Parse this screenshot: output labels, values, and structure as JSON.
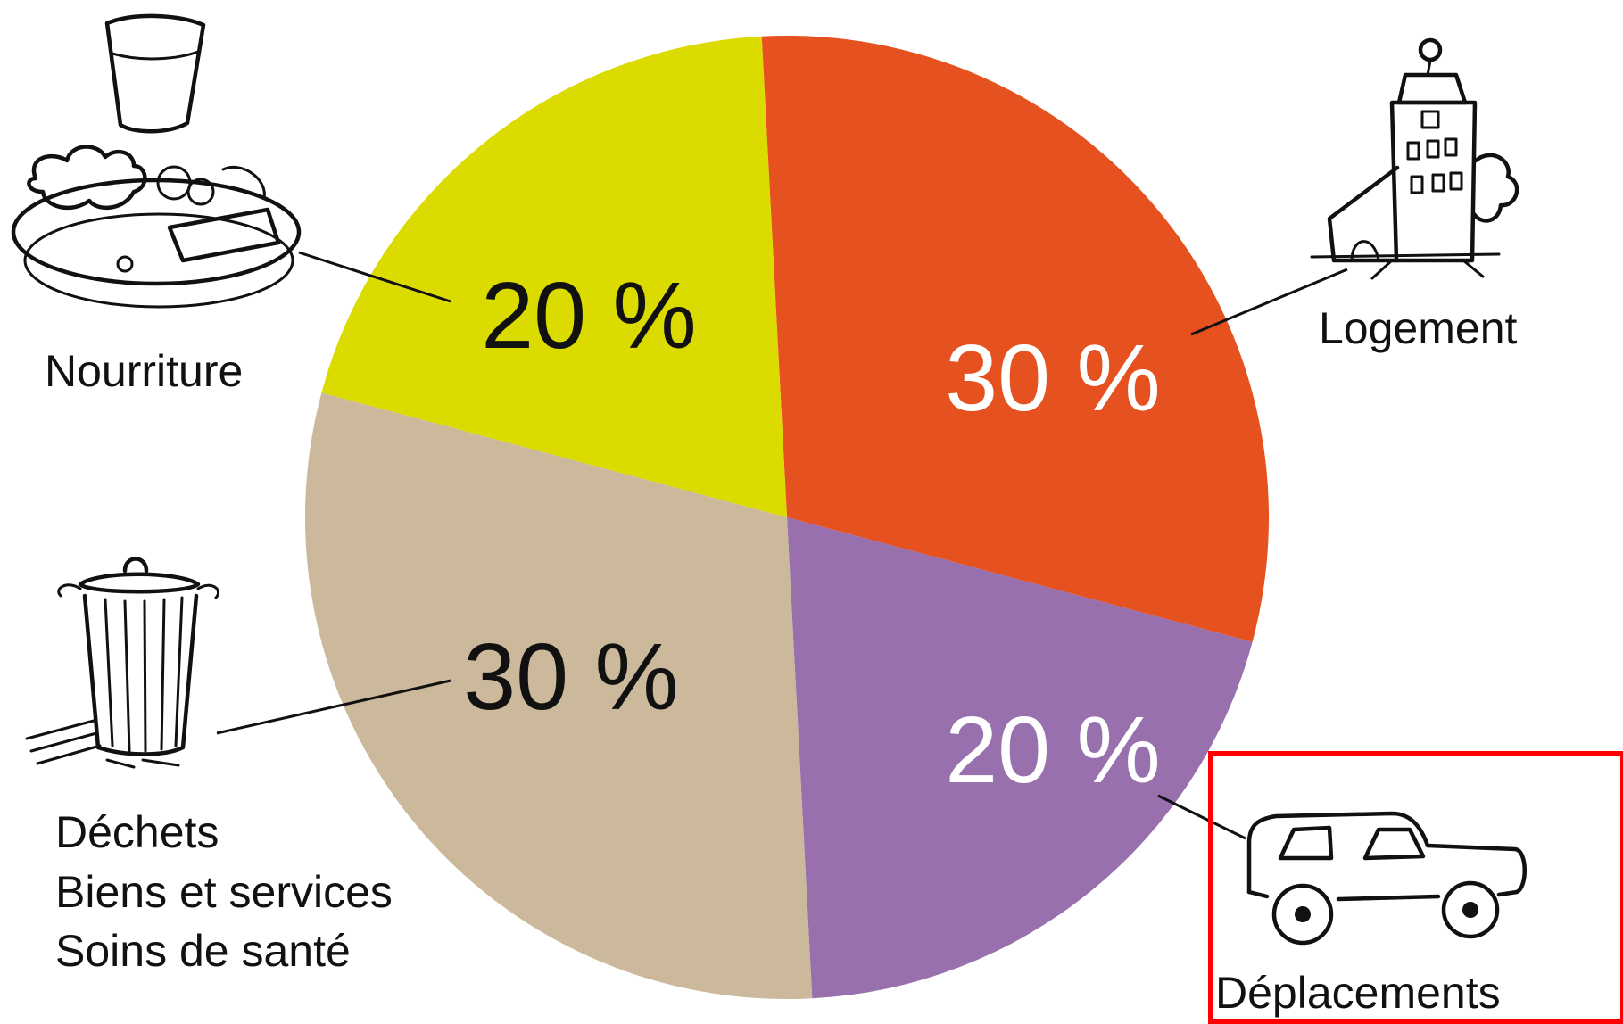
{
  "chart_data": {
    "type": "pie",
    "slices": [
      {
        "label": "Logement",
        "value": 30,
        "display": "30 %",
        "color": "#e5511f",
        "text_color": "#ffffff"
      },
      {
        "label": "Déplacements",
        "value": 20,
        "display": "20 %",
        "color": "#9770ad",
        "text_color": "#ffffff"
      },
      {
        "label": [
          "Déchets",
          "Biens et services",
          "Soins de santé"
        ],
        "value": 30,
        "display": "30 %",
        "color": "#ccb99b",
        "text_color": "#111111"
      },
      {
        "label": "Nourriture",
        "value": 20,
        "display": "20 %",
        "color": "#dcdb00",
        "text_color": "#111111"
      }
    ],
    "highlight": {
      "slice": "Déplacements",
      "color": "#ff0000"
    }
  },
  "icons": {
    "logement": "house-icon",
    "deplacements": "car-icon",
    "dechets": "trash-can-icon",
    "nourriture": "food-plate-icon"
  }
}
